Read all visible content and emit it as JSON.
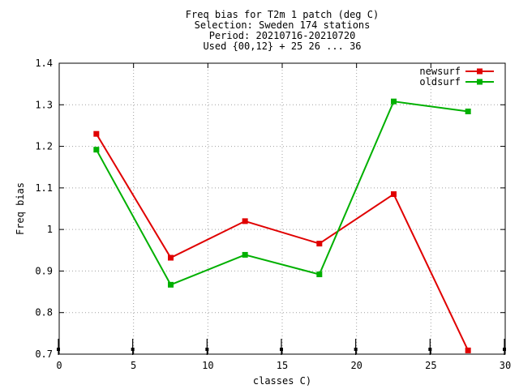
{
  "chart_data": {
    "type": "line",
    "title": [
      "Freq bias  for T2m 1 patch (deg C)",
      "Selection: Sweden    174 stations",
      "Period: 20210716-20210720",
      "Used {00,12} + 25 26 ... 36"
    ],
    "xlabel": "classes C)",
    "ylabel": "Freq bias",
    "xlim": [
      0,
      30
    ],
    "ylim": [
      0.7,
      1.4
    ],
    "xticks": [
      0,
      5,
      10,
      15,
      20,
      25,
      30
    ],
    "yticks": [
      0.7,
      0.8,
      0.9,
      1.0,
      1.1,
      1.2,
      1.3,
      1.4
    ],
    "xtick_labels": [
      "0",
      "5",
      "10",
      "15",
      "20",
      "25",
      "30"
    ],
    "ytick_labels": [
      "0.7",
      "0.8",
      "0.9",
      "1",
      "1.1",
      "1.2",
      "1.3",
      "1.4"
    ],
    "grid": true,
    "legend_position": "top-right",
    "x": [
      2.5,
      7.5,
      12.5,
      17.5,
      22.5,
      27.5
    ],
    "series": [
      {
        "name": "newsurf",
        "color": "#e00000",
        "values": [
          1.23,
          0.932,
          1.02,
          0.966,
          1.085,
          0.709
        ]
      },
      {
        "name": "oldsurf",
        "color": "#00b000",
        "values": [
          1.192,
          0.867,
          0.939,
          0.892,
          1.308,
          1.284
        ]
      }
    ],
    "count_markers_x": [
      0,
      5,
      10,
      15,
      20,
      25,
      30
    ]
  }
}
